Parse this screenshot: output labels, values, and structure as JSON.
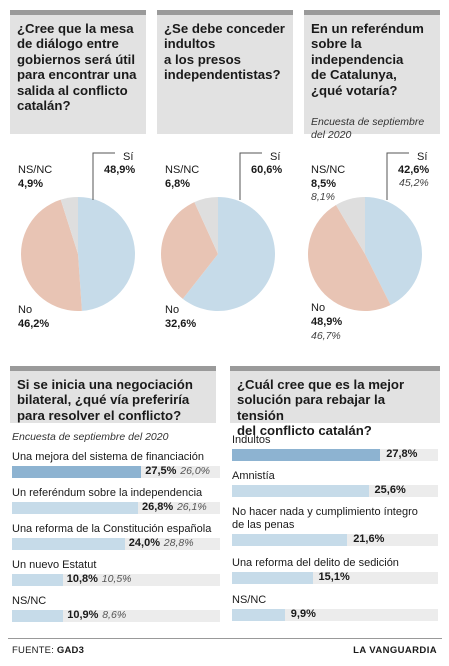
{
  "colors": {
    "si": "#c6dbe9",
    "no": "#e8c4b4",
    "nsnc": "#dedede",
    "bar_top": "#8db3d1",
    "bar_other": "#c6dbe9",
    "question_bg": "#e2e2e2",
    "question_border": "#9a9a9a"
  },
  "q1": {
    "question": "¿Cree que la mesa\nde diálogo entre\ngobiernos será útil\npara encontrar una\nsalida al conflicto\ncatalán?"
  },
  "q2": {
    "question": "¿Se debe conceder\nindultos\na los presos\nindependentistas?"
  },
  "q3": {
    "question": "En un referéndum\nsobre la\nindependencia\nde Catalunya,\n¿qué votaría?",
    "survey_note": "Encuesta de septiembre\ndel 2020"
  },
  "q4": {
    "question": "Si se inicia una negociación\nbilateral, ¿qué vía preferiría\npara resolver el conflicto?",
    "survey_note": "Encuesta de septiembre del 2020"
  },
  "q5": {
    "question": "¿Cuál cree que es la mejor\nsolución para rebajar la tensión\ndel conflicto catalán?"
  },
  "chart_data": [
    {
      "type": "pie",
      "title": "¿Cree que la mesa de diálogo entre gobiernos será útil para encontrar una salida al conflicto catalán?",
      "slices": [
        {
          "label": "Sí",
          "value": 48.9,
          "display": "48,9%"
        },
        {
          "label": "No",
          "value": 46.2,
          "display": "46,2%"
        },
        {
          "label": "NS/NC",
          "value": 4.9,
          "display": "4,9%"
        }
      ]
    },
    {
      "type": "pie",
      "title": "¿Se debe conceder indultos a los presos independentistas?",
      "slices": [
        {
          "label": "Sí",
          "value": 60.6,
          "display": "60,6%"
        },
        {
          "label": "No",
          "value": 32.6,
          "display": "32,6%"
        },
        {
          "label": "NS/NC",
          "value": 6.8,
          "display": "6,8%"
        }
      ]
    },
    {
      "type": "pie",
      "title": "En un referéndum sobre la independencia de Catalunya, ¿qué votaría?",
      "slices": [
        {
          "label": "Sí",
          "value": 42.6,
          "display": "42,6%",
          "previous": 45.2,
          "previous_display": "45,2%"
        },
        {
          "label": "No",
          "value": 48.9,
          "display": "48,9%",
          "previous": 46.7,
          "previous_display": "46,7%"
        },
        {
          "label": "NS/NC",
          "value": 8.5,
          "display": "8,5%",
          "previous": 8.1,
          "previous_display": "8,1%"
        }
      ]
    },
    {
      "type": "bar",
      "orientation": "horizontal",
      "title": "Si se inicia una negociación bilateral, ¿qué vía preferiría para resolver el conflicto?",
      "xlim": [
        0,
        30
      ],
      "categories": [
        "Una mejora del sistema de financiación",
        "Un referéndum sobre la independencia",
        "Una reforma de la Constitución española",
        "Un nuevo Estatut",
        "NS/NC"
      ],
      "series": [
        {
          "name": "",
          "values": [
            27.5,
            26.8,
            24.0,
            10.8,
            10.9
          ],
          "display": [
            "27,5%",
            "26,8%",
            "24,0%",
            "10,8%",
            "10,9%"
          ]
        },
        {
          "name": "Encuesta de septiembre del 2020",
          "values": [
            26.0,
            26.1,
            28.8,
            10.5,
            8.6
          ],
          "display": [
            "26,0%",
            "26,1%",
            "28,8%",
            "10,5%",
            "8,6%"
          ]
        }
      ]
    },
    {
      "type": "bar",
      "orientation": "horizontal",
      "title": "¿Cuál cree que es la mejor solución para rebajar la tensión del conflicto catalán?",
      "xlim": [
        0,
        30
      ],
      "categories": [
        "Indultos",
        "Amnistía",
        "No hacer nada y cumplimiento íntegro\nde las penas",
        "Una reforma del delito de sedición",
        "NS/NC"
      ],
      "values": [
        27.8,
        25.6,
        21.6,
        15.1,
        9.9
      ],
      "display": [
        "27,8%",
        "25,6%",
        "21,6%",
        "15,1%",
        "9,9%"
      ]
    }
  ],
  "footer": {
    "source_label": "FUENTE:",
    "source_name": "GAD3",
    "brand": "LA VANGUARDIA"
  }
}
